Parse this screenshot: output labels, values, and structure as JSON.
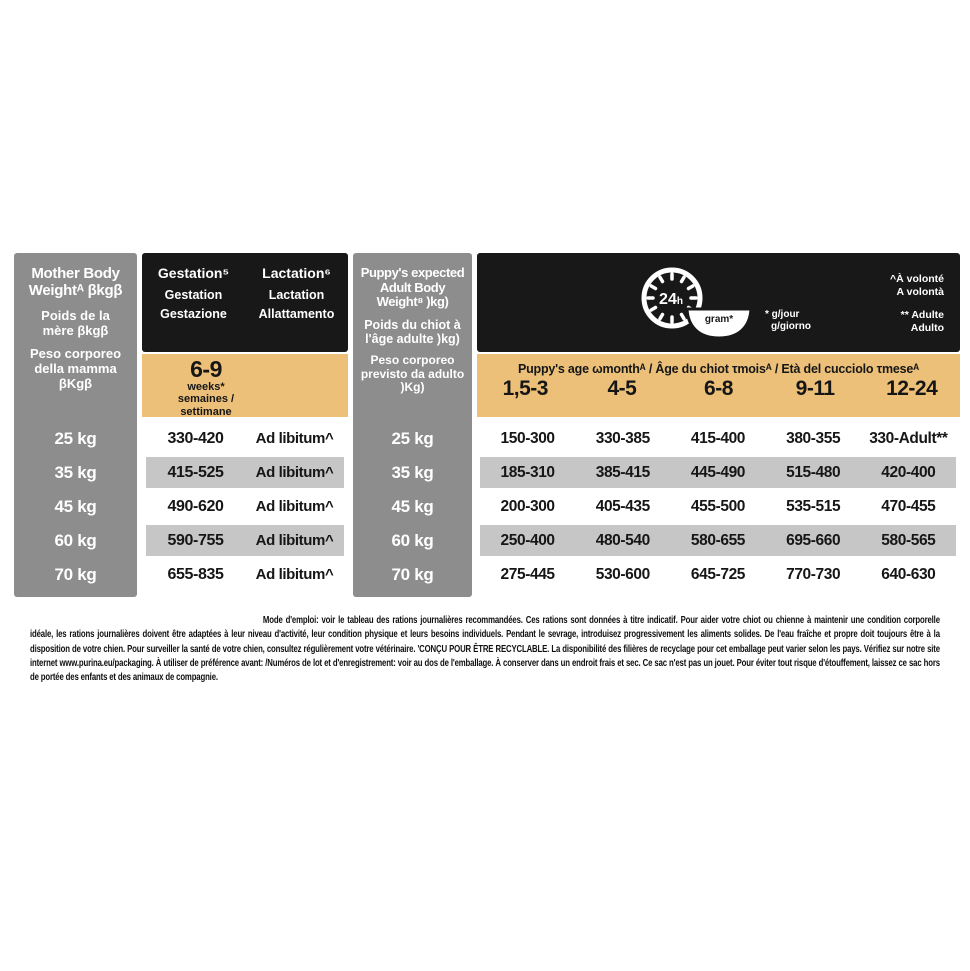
{
  "colors": {
    "grey_box": "#8d8d8d",
    "black_box": "#181818",
    "tan": "#ecc078",
    "stripe": "#c6c6c6",
    "text_dark": "#161616"
  },
  "table": {
    "mother_header": {
      "en": "Mother Body Weightᴬ βkgβ",
      "fr": "Poids de la mère βkgβ",
      "it": "Peso corporeo della mamma βKgβ"
    },
    "gestation_header": {
      "en": "Gestation⁵",
      "fr": "Gestation",
      "it": "Gestazione"
    },
    "lactation_header": {
      "en": "Lactation⁶",
      "fr": "Lactation",
      "it": "Allattamento"
    },
    "weeks_box": {
      "range": "6-9",
      "unit": "weeks*",
      "translations": "semaines / settimane"
    },
    "puppy_weight_header": {
      "en": "Puppy's expected Adult Body Weight⁸ )kg)",
      "fr": "Poids du chiot à l'âge adulte )kg)",
      "it": "Peso corporeo previsto da adulto )Kg)"
    },
    "legend": {
      "clock_label": "24h",
      "bowl_label": "gram*",
      "per_day_fr": "* g/jour",
      "per_day_it": "g/giorno",
      "ad_libitum_note_fr": "^À volonté",
      "ad_libitum_note_it": "A volontà",
      "adult_note_fr": "** Adulte",
      "adult_note_it": "Adulto"
    },
    "age_title": "Puppy's age ωmonthᴬ / Âge du chiot τmoisᴬ / Età del cucciolo τmeseᴬ",
    "age_columns": [
      "1,5-3",
      "4-5",
      "6-8",
      "9-11",
      "12-24"
    ],
    "rows": [
      {
        "weight": "25 kg",
        "gestation": "330-420",
        "lactation": "Ad libitum^",
        "striped": false,
        "ages": [
          "150-300",
          "330-385",
          "415-400",
          "380-355",
          "330-Adult**"
        ]
      },
      {
        "weight": "35 kg",
        "gestation": "415-525",
        "lactation": "Ad libitum^",
        "striped": true,
        "ages": [
          "185-310",
          "385-415",
          "445-490",
          "515-480",
          "420-400"
        ]
      },
      {
        "weight": "45 kg",
        "gestation": "490-620",
        "lactation": "Ad libitum^",
        "striped": false,
        "ages": [
          "200-300",
          "405-435",
          "455-500",
          "535-515",
          "470-455"
        ]
      },
      {
        "weight": "60 kg",
        "gestation": "590-755",
        "lactation": "Ad libitum^",
        "striped": true,
        "ages": [
          "250-400",
          "480-540",
          "580-655",
          "695-660",
          "580-565"
        ]
      },
      {
        "weight": "70 kg",
        "gestation": "655-835",
        "lactation": "Ad libitum^",
        "striped": false,
        "ages": [
          "275-445",
          "530-600",
          "645-725",
          "770-730",
          "640-630"
        ]
      }
    ]
  },
  "footer": {
    "lead": "Mode d'emploi:",
    "body": " voir le tableau des rations journalières recommandées. Ces rations sont données à titre indicatif. Pour aider votre chiot ou chienne à maintenir une condition corporelle idéale, les rations journalières doivent être adaptées à leur niveau d'activité, leur condition physique et leurs besoins individuels. Pendant le sevrage, introduisez progressivement les aliments solides. De l'eau fraîche et propre doit toujours être à la disposition de votre chien. Pour surveiller la santé de votre chien, consultez régulièrement votre vétérinaire. 'CONÇU POUR ÊTRE RECYCLABLE. La disponibilité des filières de recyclage pour cet emballage peut varier selon les pays. Vérifiez sur notre site internet www.purina.eu/packaging. À utiliser de préférence avant: /Numéros de lot et d'enregistrement: voir au dos de l'emballage. À conserver dans un endroit frais et sec. Ce sac n'est pas un jouet. Pour éviter tout risque d'étouffement, laissez ce sac hors de portée des enfants et des animaux de compagnie."
  }
}
